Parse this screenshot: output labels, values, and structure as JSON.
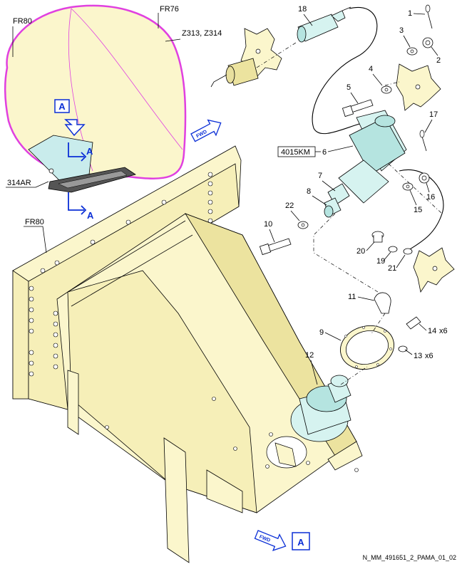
{
  "callouts": {
    "c1": "1",
    "c2": "2",
    "c3": "3",
    "c4": "4",
    "c5": "5",
    "c6": "6",
    "c7": "7",
    "c8": "8",
    "c9": "9",
    "c10": "10",
    "c11": "11",
    "c12": "12",
    "c13": "13",
    "c14": "14",
    "c15": "15",
    "c16": "16",
    "c17": "17",
    "c18": "18",
    "c19": "19",
    "c20": "20",
    "c21": "21",
    "c22": "22"
  },
  "quantities": {
    "q13": "x6",
    "q14": "x6"
  },
  "frames": {
    "fr76": "FR76",
    "fr80_top": "FR80",
    "fr80_mid": "FR80"
  },
  "zones": {
    "z313_314": "Z313, Z314",
    "access_314ar": "314AR"
  },
  "equipment_id": "4015KM",
  "view_letter": "A",
  "fwd_label": "FWD",
  "figure_code": "N_MM_491651_2_PAMA_01_02",
  "colors": {
    "structure": "#fbf6cc",
    "component": "#d6f3f0",
    "zone_outline": "#e040e0",
    "view_marker": "#0b2fd6"
  }
}
